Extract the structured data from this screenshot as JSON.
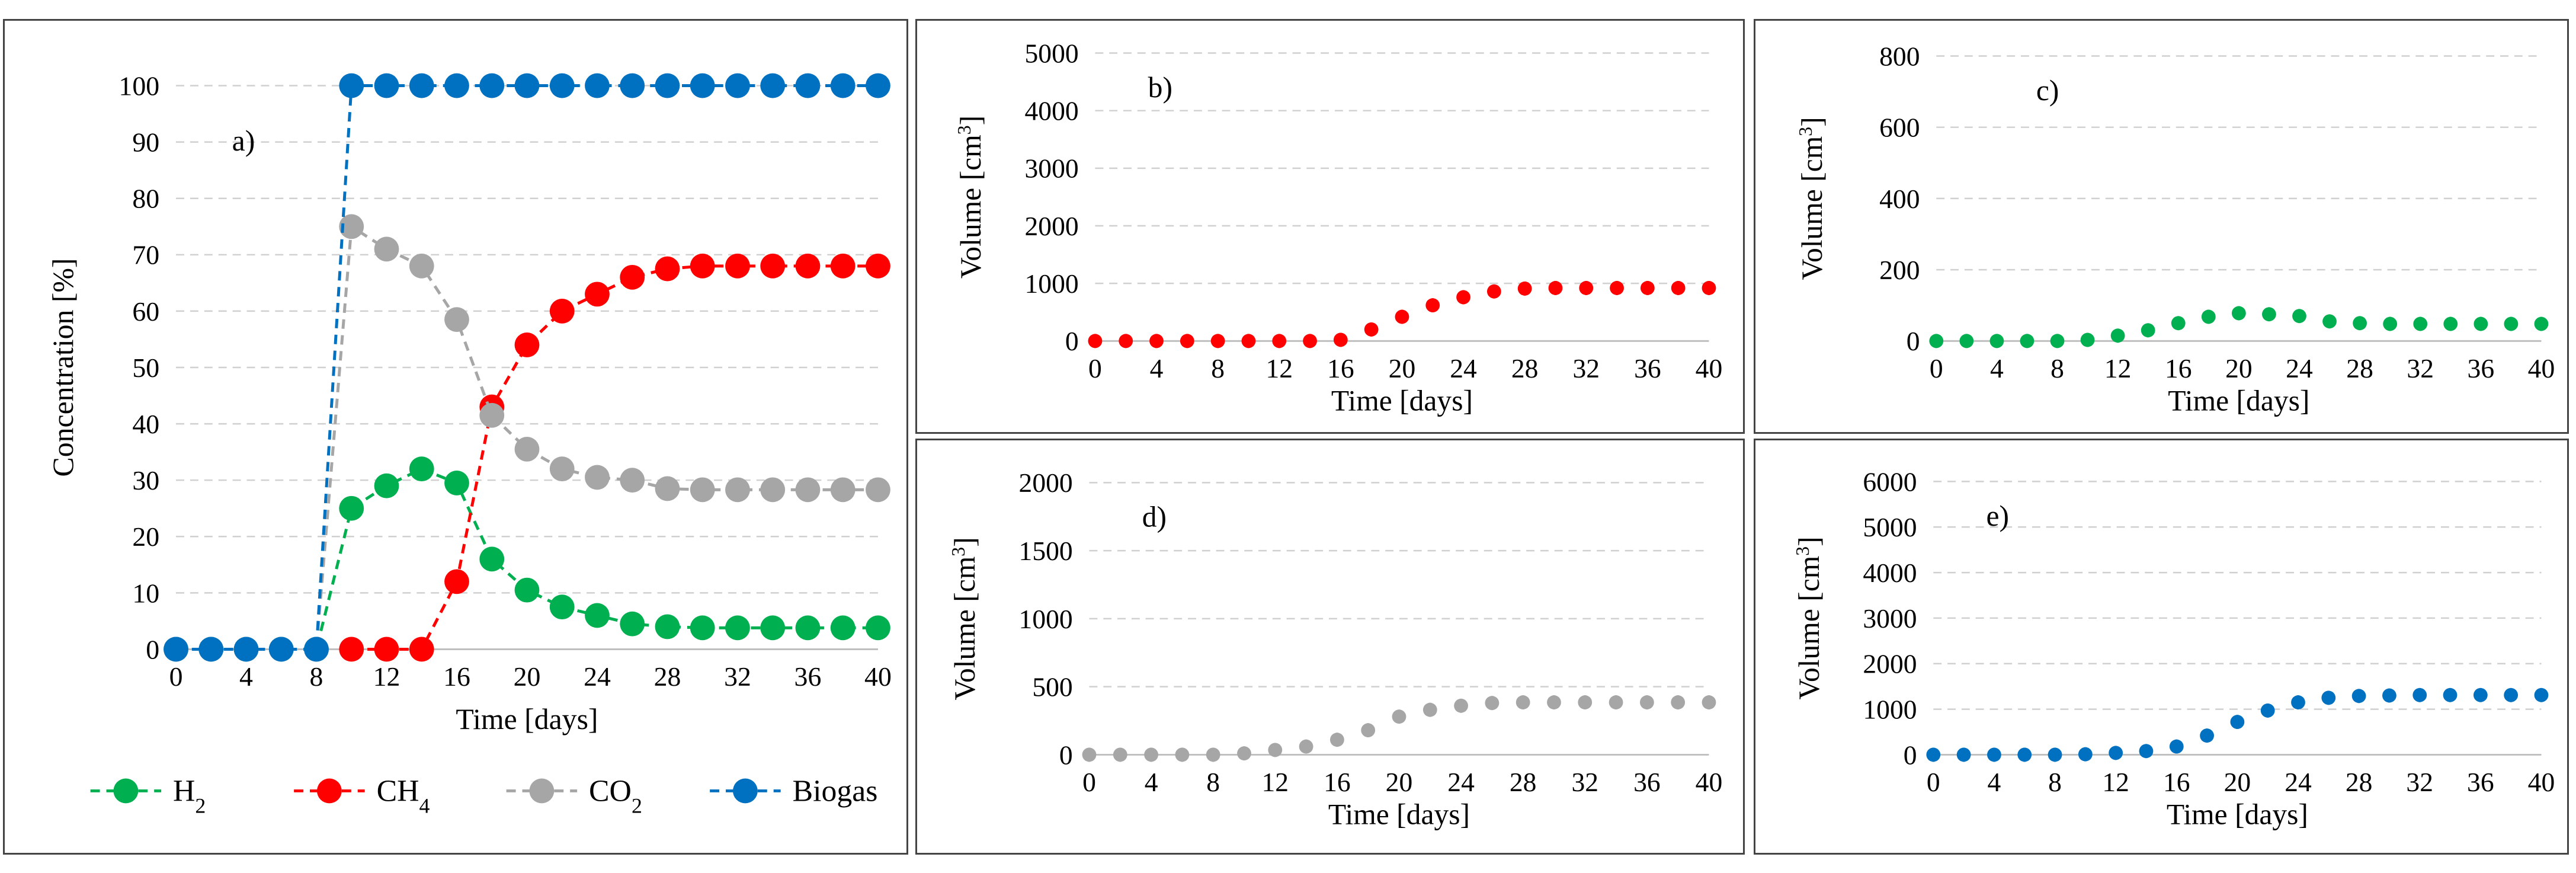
{
  "chart_data": [
    {
      "id": "a",
      "type": "line",
      "panel_label": "a)",
      "xlabel": "Time [days]",
      "ylabel": "Concentration [%]",
      "xlim": [
        0,
        40
      ],
      "ylim": [
        0,
        100
      ],
      "x_ticks": [
        0,
        4,
        8,
        12,
        16,
        20,
        24,
        28,
        32,
        36,
        40
      ],
      "y_ticks": [
        0,
        10,
        20,
        30,
        40,
        50,
        60,
        70,
        80,
        90,
        100
      ],
      "legend_position": "bottom",
      "series": [
        {
          "key": "h2",
          "name": "H",
          "sub": "2",
          "color": "#00b050",
          "x": [
            0,
            2,
            4,
            6,
            8,
            10,
            12,
            14,
            16,
            18,
            20,
            22,
            24,
            26,
            28,
            30,
            32,
            34,
            36,
            38,
            40
          ],
          "values": [
            0,
            0,
            0,
            0,
            0,
            25,
            29,
            32,
            29.5,
            16,
            10.5,
            7.5,
            6,
            4.5,
            4,
            3.8,
            3.8,
            3.8,
            3.8,
            3.8,
            3.8
          ]
        },
        {
          "key": "ch4",
          "name": "CH",
          "sub": "4",
          "color": "#ff0000",
          "x": [
            10,
            12,
            14,
            16,
            18,
            20,
            22,
            24,
            26,
            28,
            30,
            32,
            34,
            36,
            38,
            40
          ],
          "values": [
            0,
            0,
            0,
            12,
            43,
            54,
            60,
            63,
            66,
            67.5,
            68,
            68,
            68,
            68,
            68,
            68
          ]
        },
        {
          "key": "co2",
          "name": "CO",
          "sub": "2",
          "color": "#a6a6a6",
          "x": [
            0,
            2,
            4,
            6,
            8,
            10,
            12,
            14,
            16,
            18,
            20,
            22,
            24,
            26,
            28,
            30,
            32,
            34,
            36,
            38,
            40
          ],
          "values": [
            0,
            0,
            0,
            0,
            0,
            75,
            71,
            68,
            58.5,
            41.5,
            35.5,
            32,
            30.5,
            30,
            28.5,
            28.3,
            28.3,
            28.3,
            28.3,
            28.3,
            28.3
          ]
        },
        {
          "key": "biogas",
          "name": "Biogas",
          "sub": "",
          "color": "#0070c0",
          "x": [
            0,
            2,
            4,
            6,
            8,
            10,
            12,
            14,
            16,
            18,
            20,
            22,
            24,
            26,
            28,
            30,
            32,
            34,
            36,
            38,
            40
          ],
          "values": [
            0,
            0,
            0,
            0,
            0,
            100,
            100,
            100,
            100,
            100,
            100,
            100,
            100,
            100,
            100,
            100,
            100,
            100,
            100,
            100,
            100
          ]
        }
      ]
    },
    {
      "id": "b",
      "type": "scatter",
      "panel_label": "b)",
      "xlabel": "Time [days]",
      "ylabel": "Volume [cm",
      "ylabel_sup": "3",
      "ylabel_end": "]",
      "xlim": [
        0,
        40
      ],
      "ylim": [
        0,
        5000
      ],
      "x_ticks": [
        0,
        4,
        8,
        12,
        16,
        20,
        24,
        28,
        32,
        36,
        40
      ],
      "y_ticks": [
        0,
        1000,
        2000,
        3000,
        4000,
        5000
      ],
      "series": [
        {
          "name": "CH4",
          "color": "#ff0000",
          "x": [
            0,
            2,
            4,
            6,
            8,
            10,
            12,
            14,
            16,
            18,
            20,
            22,
            24,
            26,
            28,
            30,
            32,
            34,
            36,
            38,
            40
          ],
          "values": [
            0,
            0,
            0,
            0,
            0,
            0,
            0,
            0,
            20,
            200,
            420,
            620,
            760,
            860,
            910,
            920,
            920,
            920,
            920,
            920,
            920
          ]
        }
      ]
    },
    {
      "id": "c",
      "type": "scatter",
      "panel_label": "c)",
      "xlabel": "Time [days]",
      "ylabel": "Volume [cm",
      "ylabel_sup": "3",
      "ylabel_end": "]",
      "xlim": [
        0,
        40
      ],
      "ylim": [
        0,
        800
      ],
      "x_ticks": [
        0,
        4,
        8,
        12,
        16,
        20,
        24,
        28,
        32,
        36,
        40
      ],
      "y_ticks": [
        0,
        200,
        400,
        600,
        800
      ],
      "series": [
        {
          "name": "H2",
          "color": "#00b050",
          "x": [
            0,
            2,
            4,
            6,
            8,
            10,
            12,
            14,
            16,
            18,
            20,
            22,
            24,
            26,
            28,
            30,
            32,
            34,
            36,
            38,
            40
          ],
          "values": [
            0,
            0,
            0,
            0,
            0,
            3,
            15,
            30,
            50,
            68,
            78,
            75,
            70,
            55,
            50,
            48,
            48,
            48,
            48,
            48,
            48
          ]
        }
      ]
    },
    {
      "id": "d",
      "type": "scatter",
      "panel_label": "d)",
      "xlabel": "Time [days]",
      "ylabel": "Volume [cm",
      "ylabel_sup": "3",
      "ylabel_end": "]",
      "xlim": [
        0,
        40
      ],
      "ylim": [
        0,
        2000
      ],
      "x_ticks": [
        0,
        4,
        8,
        12,
        16,
        20,
        24,
        28,
        32,
        36,
        40
      ],
      "y_ticks": [
        0,
        500,
        1000,
        1500,
        2000
      ],
      "series": [
        {
          "name": "CO2",
          "color": "#a6a6a6",
          "x": [
            0,
            2,
            4,
            6,
            8,
            10,
            12,
            14,
            16,
            18,
            20,
            22,
            24,
            26,
            28,
            30,
            32,
            34,
            36,
            38,
            40
          ],
          "values": [
            0,
            0,
            0,
            0,
            0,
            10,
            35,
            60,
            110,
            180,
            280,
            330,
            360,
            380,
            385,
            385,
            385,
            385,
            385,
            385,
            385
          ]
        }
      ]
    },
    {
      "id": "e",
      "type": "scatter",
      "panel_label": "e)",
      "xlabel": "Time [days]",
      "ylabel": "Volume [cm",
      "ylabel_sup": "3",
      "ylabel_end": "]",
      "xlim": [
        0,
        40
      ],
      "ylim": [
        0,
        6000
      ],
      "x_ticks": [
        0,
        4,
        8,
        12,
        16,
        20,
        24,
        28,
        32,
        36,
        40
      ],
      "y_ticks": [
        0,
        1000,
        2000,
        3000,
        4000,
        5000,
        6000
      ],
      "series": [
        {
          "name": "Biogas",
          "color": "#0070c0",
          "x": [
            0,
            2,
            4,
            6,
            8,
            10,
            12,
            14,
            16,
            18,
            20,
            22,
            24,
            26,
            28,
            30,
            32,
            34,
            36,
            38,
            40
          ],
          "values": [
            0,
            0,
            0,
            0,
            0,
            10,
            40,
            80,
            180,
            420,
            720,
            970,
            1150,
            1250,
            1290,
            1300,
            1310,
            1310,
            1310,
            1310,
            1310
          ]
        }
      ]
    }
  ]
}
